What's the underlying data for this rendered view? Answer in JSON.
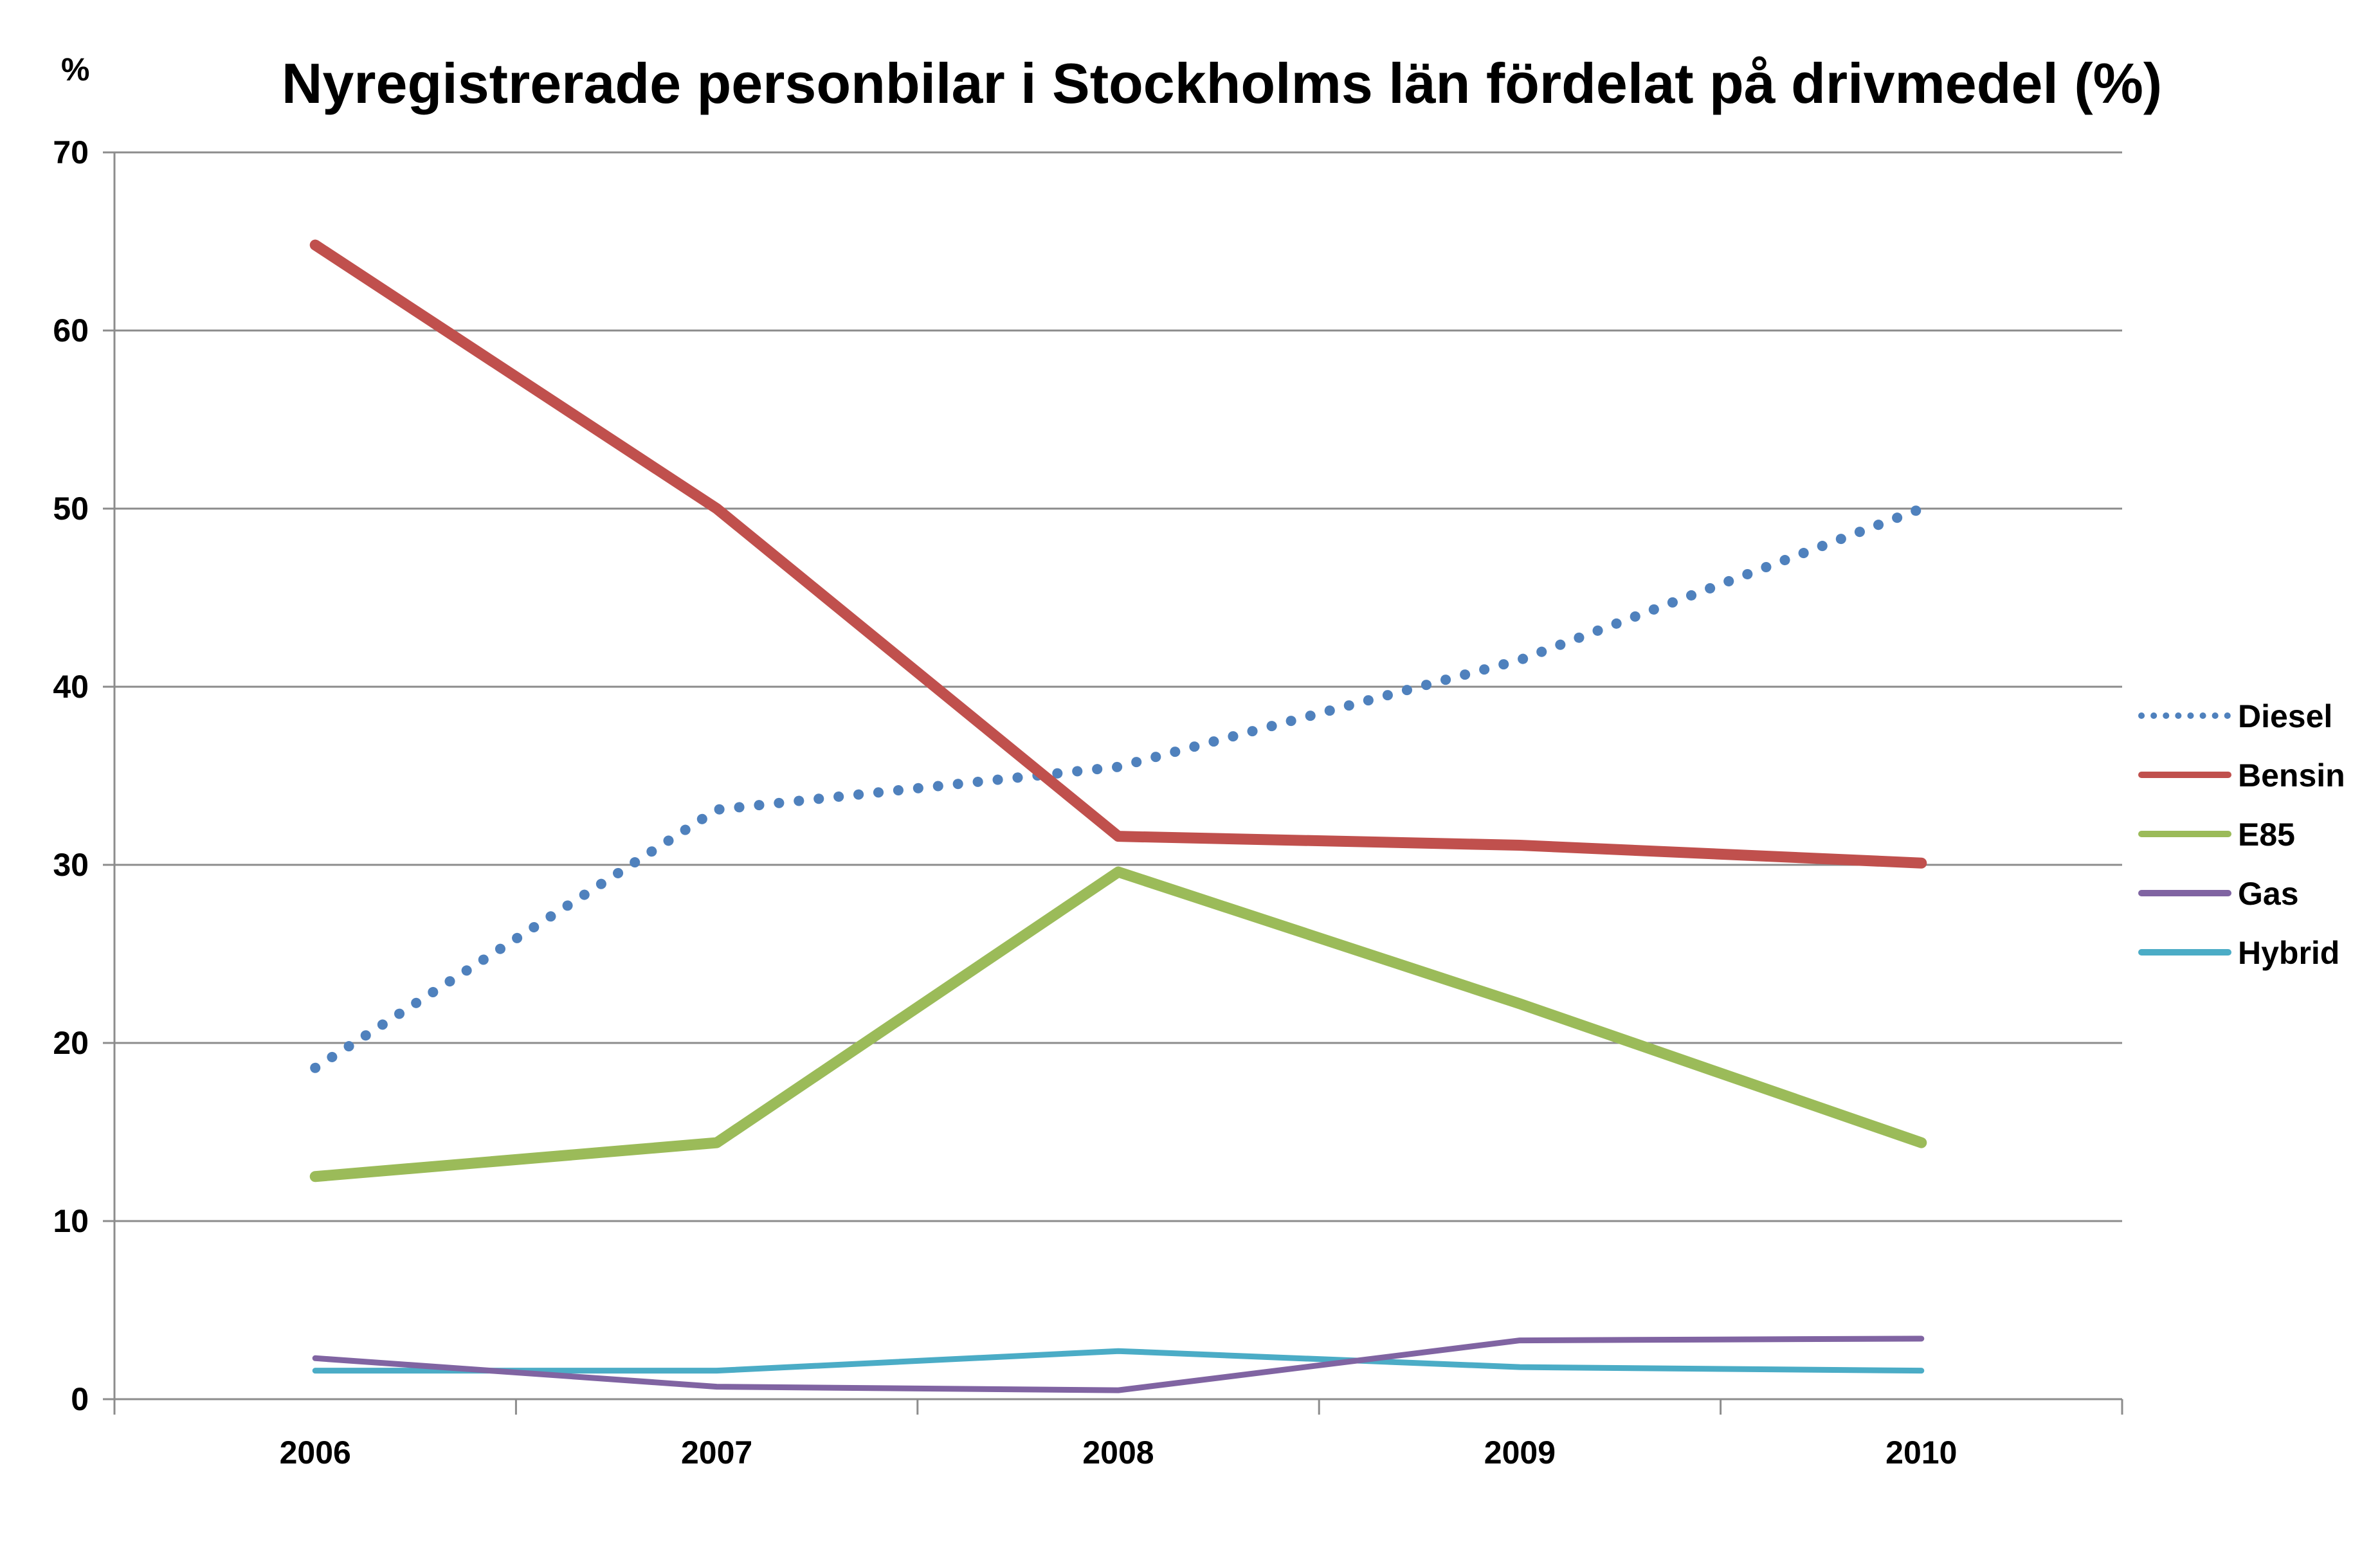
{
  "chart_data": {
    "type": "line",
    "title": "Nyregistrerade personbilar i Stockholms län fördelat på drivmedel (%)",
    "ylabel": "%",
    "xlabel": "",
    "categories": [
      "2006",
      "2007",
      "2008",
      "2009",
      "2010"
    ],
    "ylim": [
      0,
      70
    ],
    "yticks": [
      "0",
      "10",
      "20",
      "30",
      "40",
      "50",
      "60",
      "70"
    ],
    "grid": true,
    "legend_position": "right",
    "series": [
      {
        "name": "Diesel",
        "values": [
          18.6,
          33.1,
          35.5,
          41.5,
          50.0
        ],
        "color": "#4F81BD",
        "style": "dotted"
      },
      {
        "name": "Bensin",
        "values": [
          64.8,
          50.0,
          31.6,
          31.1,
          30.1
        ],
        "color": "#C0504D",
        "style": "solid"
      },
      {
        "name": "E85",
        "values": [
          12.5,
          14.4,
          29.6,
          22.2,
          14.4
        ],
        "color": "#9BBB59",
        "style": "solid"
      },
      {
        "name": "Gas",
        "values": [
          2.3,
          0.7,
          0.5,
          3.3,
          3.4
        ],
        "color": "#8064A2",
        "style": "solid"
      },
      {
        "name": "Hybrid",
        "values": [
          1.6,
          1.6,
          2.7,
          1.8,
          1.6
        ],
        "color": "#4BACC6",
        "style": "solid"
      }
    ]
  }
}
